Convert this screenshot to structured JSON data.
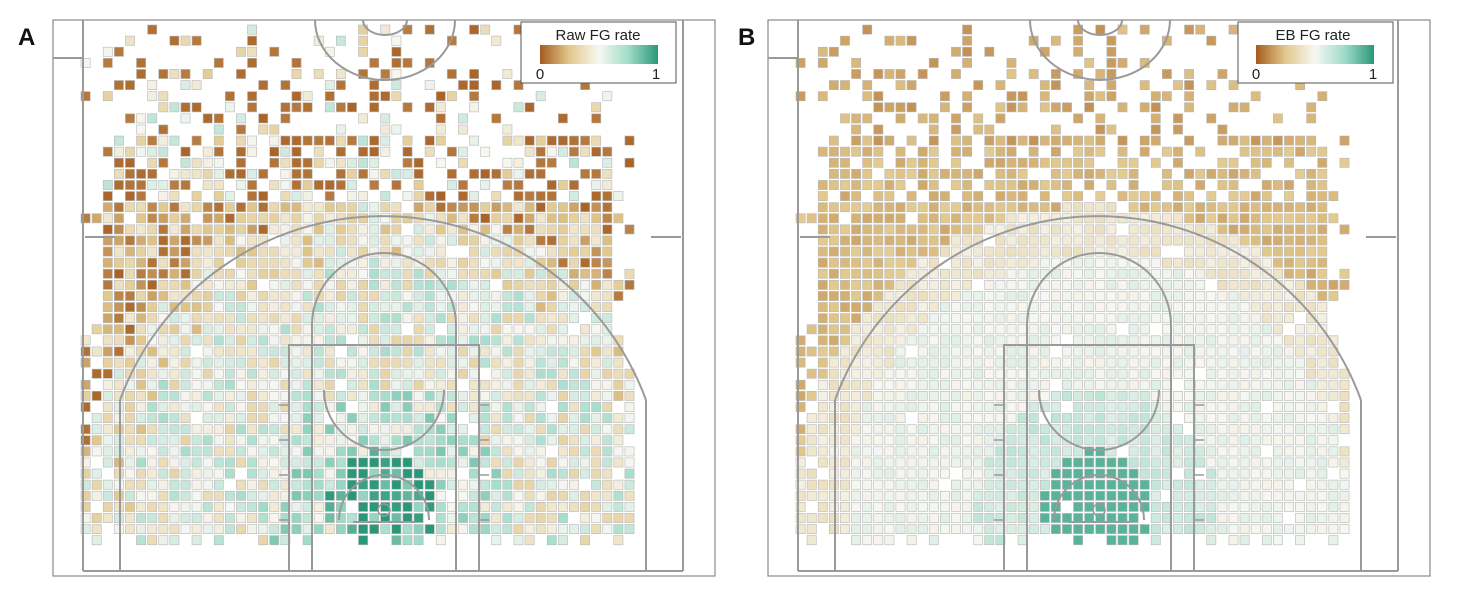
{
  "figure": {
    "panels": [
      {
        "id": "A",
        "label": "A",
        "legend_title": "Raw FG rate",
        "legend_min": "0",
        "legend_max": "1"
      },
      {
        "id": "B",
        "label": "B",
        "legend_title": "EB FG rate",
        "legend_min": "0",
        "legend_max": "1"
      }
    ],
    "colors": {
      "low": "#a65b1f",
      "mid_low": "#e2c98c",
      "mid": "#f7f7f2",
      "mid_high": "#9fdcc8",
      "high": "#2a9878",
      "grid_stroke": "#b8b8b8",
      "court_line": "#9a9a9a"
    }
  },
  "chart_data": [
    {
      "type": "heatmap",
      "title": "",
      "panel": "A",
      "legend": {
        "title": "Raw FG rate",
        "range": [
          0,
          1
        ],
        "placement": "top-right"
      },
      "grid": {
        "cols": 50,
        "rows": 47
      },
      "value_field": "Raw FG rate",
      "description_rule": "raw per-cell field goal rate on half court"
    },
    {
      "type": "heatmap",
      "title": "",
      "panel": "B",
      "legend": {
        "title": "EB FG rate",
        "range": [
          0,
          1
        ],
        "placement": "top-right"
      },
      "grid": {
        "cols": 50,
        "rows": 47
      },
      "value_field": "EB FG rate",
      "description_rule": "empirical Bayes smoothed field goal rate on half court"
    }
  ]
}
